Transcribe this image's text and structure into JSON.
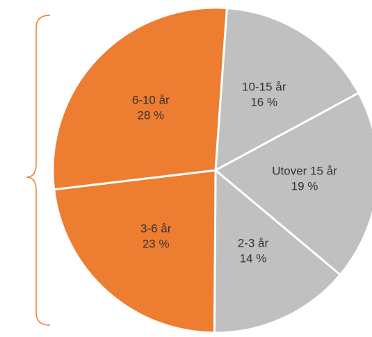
{
  "chart_data": {
    "type": "pie",
    "categories": [
      "10-15 år",
      "Utover 15 år",
      "2-3 år",
      "3-6 år",
      "6-10 år"
    ],
    "values": [
      16,
      19,
      14,
      23,
      28
    ],
    "value_labels": [
      "16 %",
      "19 %",
      "14 %",
      "23 %",
      "28 %"
    ],
    "colors": [
      "#c0c0c0",
      "#c0c0c0",
      "#c0c0c0",
      "#ed7d31",
      "#ed7d31"
    ]
  }
}
